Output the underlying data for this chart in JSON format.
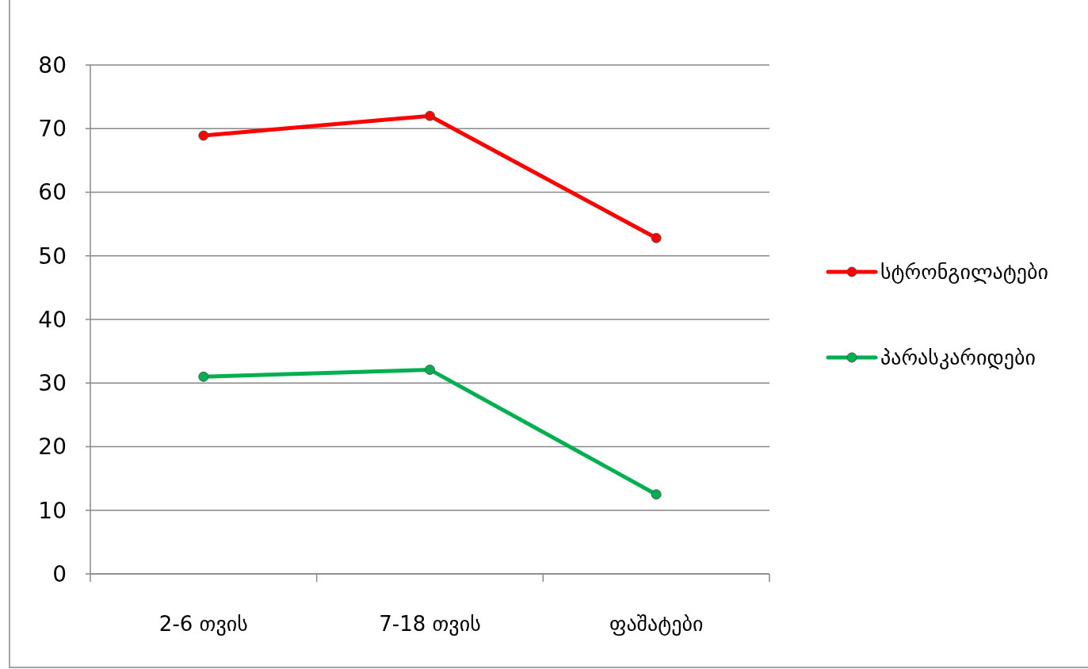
{
  "chart_data": {
    "type": "line",
    "categories": [
      "2-6 თვის",
      "7-18 თვის",
      "ფაშატები"
    ],
    "series": [
      {
        "name": "სტრონგილატები",
        "color": "#ff0000",
        "values": [
          68.9,
          72.0,
          52.8
        ]
      },
      {
        "name": "პარასკარიდები",
        "color": "#00b050",
        "values": [
          31.0,
          32.1,
          12.5
        ]
      }
    ],
    "ylim": [
      0,
      80
    ],
    "yticks": [
      0,
      10,
      20,
      30,
      40,
      50,
      60,
      70,
      80
    ],
    "grid": "y",
    "legend": "right",
    "marker": "circle"
  }
}
